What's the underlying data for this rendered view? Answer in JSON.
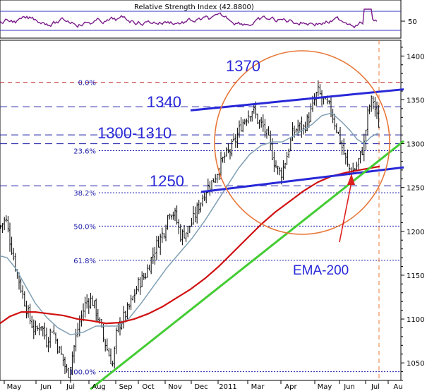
{
  "chart_data": {
    "type": "candlestick",
    "rsi_panel": {
      "title": "Relative Strength Index (42.8800)",
      "tick_label": "50",
      "line_color": "#7a1a8a"
    },
    "y_axis": {
      "ticks": [
        1050,
        1100,
        1150,
        1200,
        1250,
        1300,
        1350,
        1400
      ],
      "range": [
        1030,
        1418
      ]
    },
    "x_axis": {
      "labels": [
        "May",
        "Jun",
        "Jul",
        "Aug",
        "Sep",
        "Oct",
        "Nov",
        "Dec",
        "2011",
        "Mar",
        "Apr",
        "May",
        "Jun",
        "Jul",
        "Au"
      ]
    },
    "fibonacci_levels": [
      {
        "label": "0.0%",
        "value": 1370
      },
      {
        "label": "23.6%",
        "value": 1292
      },
      {
        "label": "38.2%",
        "value": 1244
      },
      {
        "label": "50.0%",
        "value": 1206
      },
      {
        "label": "61.8%",
        "value": 1167
      },
      {
        "label": "100.0%",
        "value": 1040
      }
    ],
    "horizontal_levels": [
      {
        "label": "1370",
        "value": 1370
      },
      {
        "label": "1340",
        "value": 1342
      },
      {
        "label": "1300-1310",
        "value": 1310
      },
      {
        "label": "1300-1310",
        "value": 1300
      },
      {
        "label": "1250",
        "value": 1252
      }
    ],
    "annotations": [
      {
        "label": "1370",
        "value": 1370
      },
      {
        "label": "1340",
        "value": 1342
      },
      {
        "label": "1300-1310",
        "value": 1305
      },
      {
        "label": "1250",
        "value": 1252
      },
      {
        "label": "EMA-200",
        "value": 1160
      }
    ],
    "series": [
      {
        "name": "EMA-200",
        "color": "#d01010"
      },
      {
        "name": "",
        "color": "#7f9fb4"
      }
    ],
    "trendlines": [
      {
        "color": "#2828d8",
        "from": [
          "Dec",
          1338
        ],
        "to": [
          "Au",
          1362
        ]
      },
      {
        "color": "#2828d8",
        "from": [
          "Dec",
          1245
        ],
        "to": [
          "Au",
          1273
        ]
      },
      {
        "color": "#44cc33",
        "from": [
          "Aug",
          1020
        ],
        "to": [
          "Au",
          1303
        ]
      }
    ],
    "colors": {
      "price": "#000000",
      "ma_short": "#7f9fb4",
      "ema_200": "#d01010",
      "trend_channel": "#2828d8",
      "trend_support": "#44cc33",
      "circle": "#e8783a",
      "arrow": "#dd2020",
      "fib": "#1a1aa8",
      "dashed_level": "#1a1aa8",
      "top_dashed": "#c03030",
      "vline": "#e8783a"
    }
  }
}
